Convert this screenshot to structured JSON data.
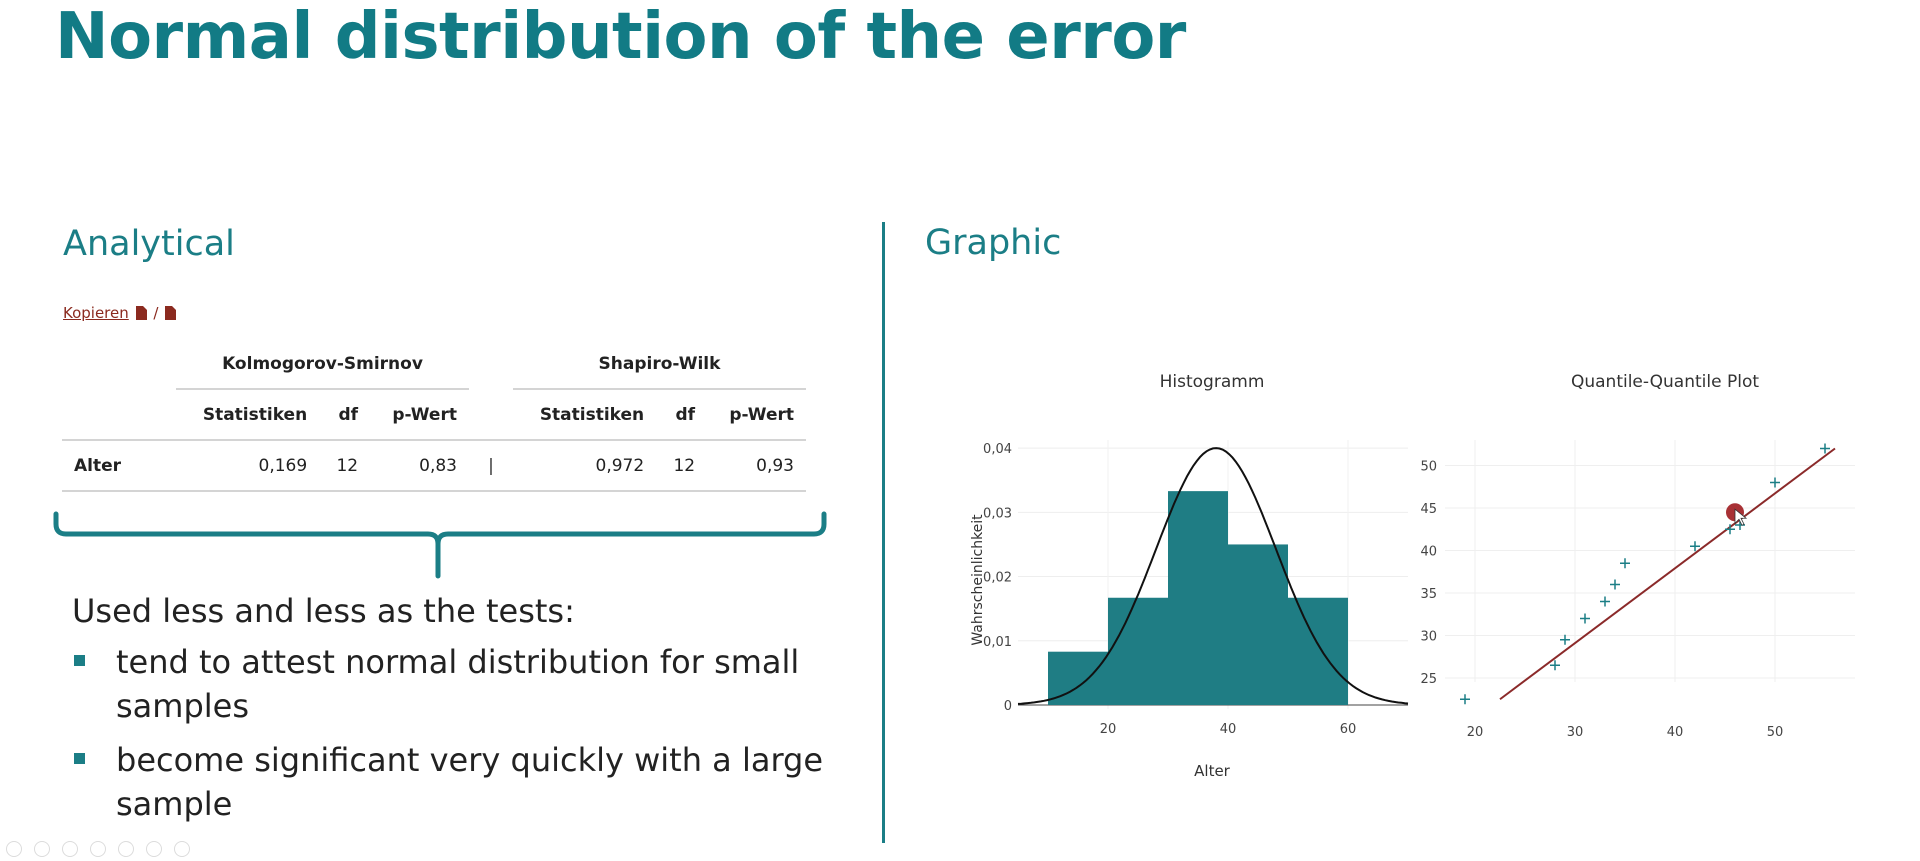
{
  "slide": {
    "title": "Normal distribution of the error",
    "analytical_heading": "Analytical",
    "graphic_heading": "Graphic"
  },
  "copy_link": {
    "label": "Kopieren",
    "separator": "/"
  },
  "table": {
    "groups": [
      "Kolmogorov-Smirnov",
      "Shapiro-Wilk"
    ],
    "columns": [
      "Statistiken",
      "df",
      "p-Wert",
      "Statistiken",
      "df",
      "p-Wert"
    ],
    "rows": [
      {
        "label": "Alter",
        "values": [
          "0,169",
          "12",
          "0,83",
          "0,972",
          "12",
          "0,93"
        ]
      }
    ],
    "cursor_glyph": "|"
  },
  "notes": {
    "lead": "Used less and less as the tests:",
    "bullets": [
      "tend to attest normal distribution for small samples",
      "become significant very quickly with a large sample"
    ]
  },
  "colors": {
    "accent": "#1b7e86",
    "bar": "#1f7d84",
    "qq_line": "#8b2a2a",
    "link": "#8b2a1f"
  },
  "chart_data": [
    {
      "type": "bar",
      "title": "Histogramm",
      "xlabel": "Alter",
      "ylabel": "Wahrscheinlichkeit",
      "bins": [
        [
          10,
          20
        ],
        [
          20,
          30
        ],
        [
          30,
          40
        ],
        [
          40,
          50
        ],
        [
          50,
          60
        ]
      ],
      "values": [
        0.0083,
        0.0167,
        0.0333,
        0.025,
        0.0167
      ],
      "xlim": [
        5,
        70
      ],
      "ylim": [
        0,
        0.04
      ],
      "xticks": [
        "20",
        "40",
        "60"
      ],
      "xtick_values": [
        20,
        40,
        60
      ],
      "yticks": [
        "0",
        "0,01",
        "0,02",
        "0,03",
        "0,04"
      ],
      "ytick_values": [
        0,
        0.01,
        0.02,
        0.03,
        0.04
      ],
      "curve": {
        "type": "normal",
        "mean": 38,
        "sd": 10,
        "peak": 0.04
      },
      "grid": true
    },
    {
      "type": "scatter",
      "title": "Quantile-Quantile Plot",
      "xlabel": "",
      "ylabel": "",
      "points": [
        [
          19,
          22.5
        ],
        [
          28,
          26.5
        ],
        [
          29,
          29.5
        ],
        [
          31,
          32
        ],
        [
          33,
          34
        ],
        [
          34,
          36
        ],
        [
          35,
          38.5
        ],
        [
          42,
          40.5
        ],
        [
          45.5,
          42.5
        ],
        [
          46.5,
          43
        ],
        [
          50,
          48
        ],
        [
          55,
          52
        ]
      ],
      "reference_line": [
        [
          22.5,
          22.5
        ],
        [
          56,
          52
        ]
      ],
      "highlight_point": [
        46,
        44.5
      ],
      "xlim": [
        17,
        58
      ],
      "ylim": [
        21,
        53
      ],
      "xticks": [
        "20",
        "30",
        "40",
        "50"
      ],
      "xtick_values": [
        20,
        30,
        40,
        50
      ],
      "yticks": [
        "25",
        "30",
        "35",
        "40",
        "45",
        "50"
      ],
      "ytick_values": [
        25,
        30,
        35,
        40,
        45,
        50
      ],
      "grid": true
    }
  ],
  "toolbar_icons": [
    "back-icon",
    "forward-icon",
    "pen-icon",
    "copy-icon",
    "zoom-icon",
    "screen-icon",
    "more-icon"
  ]
}
